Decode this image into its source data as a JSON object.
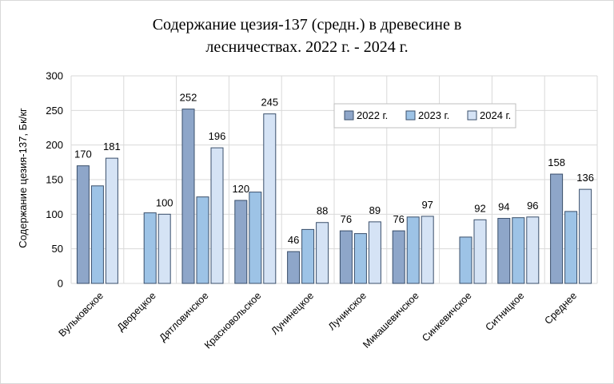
{
  "chart_data": {
    "type": "bar",
    "title_lines": [
      "Содержание цезия-137 (средн.) в древесине в",
      "лесничествах.  2022 г. - 2024 г."
    ],
    "xlabel": "",
    "ylabel": "Содержание цезия-137, Бк/кг",
    "ylim": [
      0,
      300
    ],
    "yticks": [
      0,
      50,
      100,
      150,
      200,
      250,
      300
    ],
    "grid": true,
    "legend_position": "top-right",
    "categories": [
      "Вульковское",
      "Дворецкое",
      "Дятловичское",
      "Красновольское",
      "Лунинецкое",
      "Лунинское",
      "Микашевичское",
      "Синкевичское",
      "Ситницкое",
      "Среднее"
    ],
    "series": [
      {
        "name": "2022 г.",
        "color": "#8ea6c9",
        "values": [
          170,
          null,
          252,
          120,
          46,
          76,
          76,
          null,
          94,
          158
        ],
        "labels": [
          "170",
          "",
          "252",
          "120",
          "46",
          "76",
          "76",
          "",
          "94",
          "158"
        ]
      },
      {
        "name": "2023 г.",
        "color": "#9dc3e6",
        "values": [
          141,
          102,
          125,
          132,
          78,
          72,
          96,
          67,
          95,
          104
        ],
        "labels": [
          "",
          "",
          "",
          "",
          "",
          "",
          "",
          "",
          "",
          ""
        ]
      },
      {
        "name": "2024 г.",
        "color": "#d5e3f5",
        "values": [
          181,
          100,
          196,
          245,
          88,
          89,
          97,
          92,
          96,
          136
        ],
        "labels": [
          "181",
          "100",
          "196",
          "245",
          "88",
          "89",
          "97",
          "92",
          "96",
          "136"
        ]
      }
    ]
  }
}
